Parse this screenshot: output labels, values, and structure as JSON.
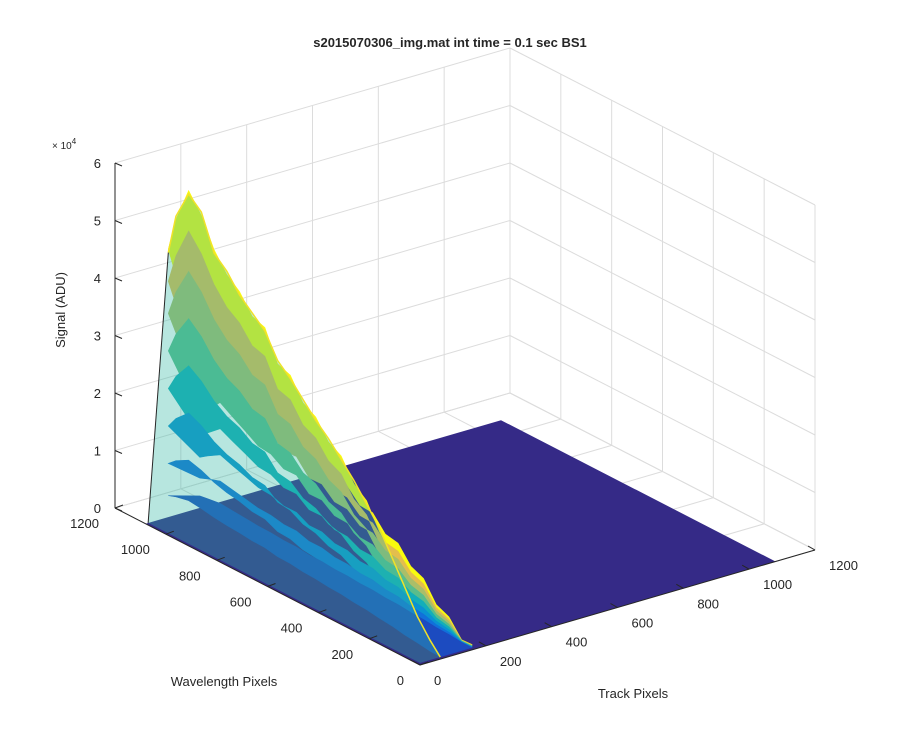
{
  "chart_data": {
    "type": "surface",
    "title": "s2015070306_img.mat int time = 0.1 sec   BS1",
    "xlabel": "Track Pixels",
    "ylabel": "Wavelength Pixels",
    "zlabel": "Signal (ADU)",
    "xlim": [
      0,
      1200
    ],
    "ylim": [
      0,
      1200
    ],
    "zlim": [
      0,
      60000
    ],
    "xticks": [
      "0",
      "200",
      "400",
      "600",
      "800",
      "1000",
      "1200"
    ],
    "yticks": [
      "0",
      "200",
      "400",
      "600",
      "800",
      "1000",
      "1200"
    ],
    "zticks": [
      "0",
      "1",
      "2",
      "3",
      "4",
      "5",
      "6"
    ],
    "z_exponent": "× 10",
    "z_exponent_power": "4",
    "colormap": "parula",
    "grid": true,
    "baseline": 0,
    "ridge": {
      "wavelength_pixels": [
        10,
        50,
        100,
        150,
        200,
        250,
        300,
        350,
        400,
        450,
        500,
        550,
        600,
        650,
        700,
        750,
        800,
        850,
        900,
        950,
        1000,
        1050,
        1080
      ],
      "peak_signal": [
        0,
        2000,
        5000,
        9000,
        13000,
        17000,
        20000,
        23000,
        25500,
        28000,
        30000,
        32500,
        35000,
        37000,
        41000,
        43000,
        45000,
        48000,
        50000,
        56000,
        58000,
        53000,
        46000
      ],
      "track_pixel_range": [
        0,
        165
      ]
    }
  }
}
